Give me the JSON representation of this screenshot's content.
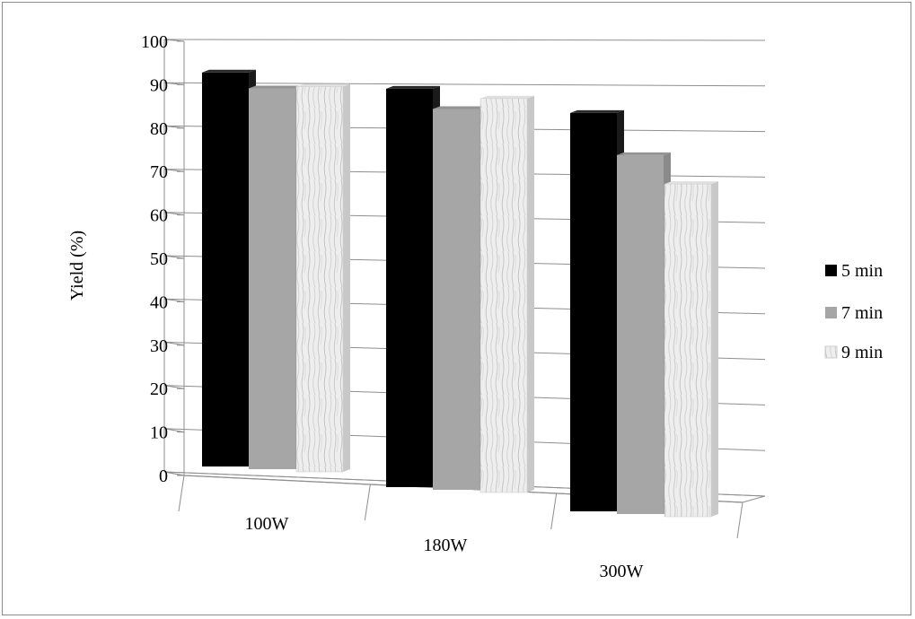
{
  "chart_data": {
    "type": "bar",
    "categories": [
      "100W",
      "180W",
      "300W"
    ],
    "series": [
      {
        "name": "5 min",
        "values": [
          90,
          91,
          91
        ]
      },
      {
        "name": "7 min",
        "values": [
          87,
          87,
          82
        ]
      },
      {
        "name": "9 min",
        "values": [
          88,
          90,
          76
        ]
      }
    ],
    "ylabel": "Yield (%)",
    "xlabel": "",
    "ylim": [
      0,
      100
    ],
    "yticks": [
      "0",
      "10",
      "20",
      "30",
      "40",
      "50",
      "60",
      "70",
      "80",
      "90",
      "100"
    ],
    "grid": true,
    "legend": "right",
    "colors": {
      "5 min": "#000000",
      "7 min": "#a6a6a6",
      "9 min": "#ececec"
    }
  }
}
